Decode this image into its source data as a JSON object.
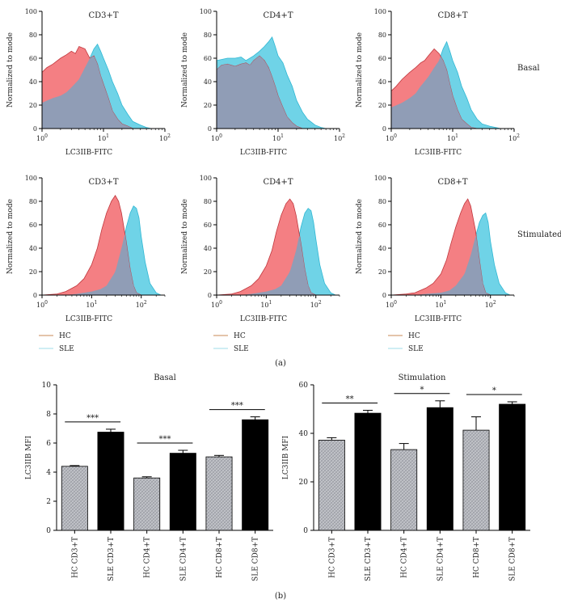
{
  "figure_labels": {
    "a": "(a)",
    "b": "(b)"
  },
  "row_labels": {
    "basal": "Basal",
    "stimulated": "Stimulated"
  },
  "legend": {
    "hc": "HC",
    "sle": "SLE"
  },
  "colors": {
    "hc_fill": "#f47f83",
    "hc_line": "#c0363c",
    "sle_fill": "#6fd3e7",
    "sle_line": "#2fb7d3",
    "overlap": "#8a9fb8",
    "bar_hc": "#bcbfc5",
    "bar_sle": "#000000"
  },
  "chart_data": [
    {
      "type": "area",
      "id": "h1",
      "title": "CD3+T",
      "xlabel": "LC3IIB-FITC",
      "ylabel": "Normalized to mode",
      "xscale": "log",
      "xlim": [
        1,
        100
      ],
      "ylim": [
        0,
        100
      ],
      "yticks": [
        "0",
        "20",
        "40",
        "60",
        "80",
        "100"
      ],
      "xticks": [
        "10^0",
        "10^1",
        "10^2"
      ],
      "series": [
        {
          "name": "HC",
          "x": [
            1,
            1.2,
            1.5,
            2,
            2.5,
            3,
            3.5,
            4,
            5,
            6,
            7,
            8,
            9,
            10,
            12,
            14,
            17,
            20,
            25,
            30
          ],
          "y": [
            48,
            52,
            55,
            60,
            63,
            66,
            64,
            70,
            68,
            60,
            62,
            55,
            45,
            38,
            26,
            15,
            8,
            4,
            2,
            0
          ]
        },
        {
          "name": "SLE",
          "x": [
            1,
            1.5,
            2,
            2.5,
            3,
            4,
            5,
            6,
            7,
            8,
            9,
            10,
            12,
            14,
            17,
            20,
            25,
            30,
            40,
            50,
            60,
            70
          ],
          "y": [
            22,
            26,
            28,
            31,
            35,
            42,
            52,
            60,
            68,
            72,
            66,
            60,
            50,
            40,
            30,
            20,
            12,
            6,
            3,
            1,
            0,
            0
          ]
        }
      ]
    },
    {
      "type": "area",
      "id": "h2",
      "title": "CD4+T",
      "xlabel": "LC3IIB-FITC",
      "ylabel": "Normalized to mode",
      "xscale": "log",
      "xlim": [
        1,
        100
      ],
      "ylim": [
        0,
        100
      ],
      "yticks": [
        "0",
        "20",
        "40",
        "60",
        "80",
        "100"
      ],
      "xticks": [
        "10^0",
        "10^1",
        "10^2"
      ],
      "series": [
        {
          "name": "HC",
          "x": [
            1,
            1.2,
            1.5,
            2,
            2.5,
            3,
            3.5,
            4,
            5,
            6,
            7,
            8,
            9,
            10,
            12,
            14,
            17,
            20,
            25
          ],
          "y": [
            50,
            54,
            55,
            53,
            55,
            56,
            54,
            58,
            62,
            58,
            52,
            44,
            36,
            28,
            18,
            10,
            5,
            2,
            0
          ]
        },
        {
          "name": "SLE",
          "x": [
            1,
            1.5,
            2,
            2.5,
            3,
            4,
            5,
            6,
            7,
            8,
            9,
            10,
            12,
            14,
            17,
            20,
            25,
            30,
            40,
            50,
            60
          ],
          "y": [
            58,
            60,
            60,
            61,
            58,
            62,
            66,
            70,
            74,
            78,
            70,
            62,
            56,
            46,
            36,
            24,
            14,
            8,
            3,
            1,
            0
          ]
        }
      ]
    },
    {
      "type": "area",
      "id": "h3",
      "title": "CD8+T",
      "xlabel": "LC3IIB-FITC",
      "ylabel": "Normalized to mode",
      "xscale": "log",
      "xlim": [
        1,
        100
      ],
      "ylim": [
        0,
        100
      ],
      "yticks": [
        "0",
        "20",
        "40",
        "60",
        "80",
        "100"
      ],
      "xticks": [
        "10^0",
        "10^1",
        "10^2"
      ],
      "series": [
        {
          "name": "HC",
          "x": [
            1,
            1.2,
            1.5,
            2,
            2.5,
            3,
            3.5,
            4,
            5,
            6,
            7,
            8,
            9,
            10,
            12,
            14,
            17,
            20,
            25
          ],
          "y": [
            32,
            36,
            42,
            48,
            52,
            56,
            58,
            62,
            68,
            64,
            58,
            50,
            38,
            28,
            16,
            8,
            4,
            1,
            0
          ]
        },
        {
          "name": "SLE",
          "x": [
            1,
            1.5,
            2,
            2.5,
            3,
            4,
            5,
            6,
            7,
            8,
            9,
            10,
            12,
            14,
            17,
            20,
            25,
            30,
            40,
            50,
            60
          ],
          "y": [
            18,
            22,
            26,
            30,
            36,
            44,
            52,
            58,
            68,
            74,
            66,
            58,
            48,
            36,
            26,
            16,
            8,
            4,
            2,
            1,
            0
          ]
        }
      ]
    },
    {
      "type": "area",
      "id": "h4",
      "title": "CD3+T",
      "xlabel": "LC3IIB-FITC",
      "ylabel": "Normalized to mode",
      "xscale": "log",
      "xlim": [
        1,
        300
      ],
      "ylim": [
        0,
        100
      ],
      "yticks": [
        "0",
        "20",
        "40",
        "60",
        "80",
        "100"
      ],
      "xticks": [
        "10^0",
        "10^1",
        "10^2"
      ],
      "series": [
        {
          "name": "HC",
          "x": [
            1,
            2,
            3,
            5,
            7,
            10,
            13,
            16,
            20,
            25,
            30,
            35,
            40,
            50,
            60,
            70,
            80,
            100
          ],
          "y": [
            0,
            1,
            3,
            8,
            14,
            26,
            40,
            56,
            70,
            80,
            85,
            80,
            70,
            45,
            22,
            8,
            2,
            0
          ]
        },
        {
          "name": "SLE",
          "x": [
            1,
            3,
            5,
            10,
            15,
            20,
            30,
            40,
            50,
            60,
            70,
            80,
            90,
            100,
            120,
            150,
            200,
            250
          ],
          "y": [
            0,
            0,
            1,
            3,
            5,
            8,
            20,
            40,
            58,
            70,
            76,
            74,
            66,
            50,
            28,
            10,
            2,
            0
          ]
        }
      ]
    },
    {
      "type": "area",
      "id": "h5",
      "title": "CD4+T",
      "xlabel": "LC3IIB-FITC",
      "ylabel": "Normalized to mode",
      "xscale": "log",
      "xlim": [
        1,
        300
      ],
      "ylim": [
        0,
        100
      ],
      "yticks": [
        "0",
        "20",
        "40",
        "60",
        "80",
        "100"
      ],
      "xticks": [
        "10^0",
        "10^1",
        "10^2"
      ],
      "series": [
        {
          "name": "HC",
          "x": [
            1,
            2,
            3,
            5,
            7,
            10,
            13,
            16,
            20,
            25,
            30,
            35,
            40,
            50,
            60,
            70,
            80,
            100
          ],
          "y": [
            0,
            1,
            3,
            8,
            14,
            25,
            38,
            54,
            68,
            78,
            82,
            78,
            68,
            44,
            22,
            8,
            2,
            0
          ]
        },
        {
          "name": "SLE",
          "x": [
            1,
            3,
            5,
            10,
            15,
            20,
            30,
            40,
            50,
            60,
            70,
            80,
            90,
            100,
            120,
            150,
            200,
            250
          ],
          "y": [
            0,
            0,
            1,
            3,
            5,
            8,
            20,
            38,
            58,
            70,
            74,
            72,
            62,
            48,
            26,
            10,
            2,
            0
          ]
        }
      ]
    },
    {
      "type": "area",
      "id": "h6",
      "title": "CD8+T",
      "xlabel": "LC3IIB-FITC",
      "ylabel": "Normalized to mode",
      "xscale": "log",
      "xlim": [
        1,
        300
      ],
      "ylim": [
        0,
        100
      ],
      "yticks": [
        "0",
        "20",
        "40",
        "60",
        "80",
        "100"
      ],
      "xticks": [
        "10^0",
        "10^1",
        "10^2"
      ],
      "series": [
        {
          "name": "HC",
          "x": [
            1,
            2,
            3,
            5,
            7,
            10,
            13,
            16,
            20,
            25,
            30,
            35,
            40,
            50,
            60,
            70,
            80,
            100
          ],
          "y": [
            0,
            1,
            2,
            6,
            10,
            18,
            30,
            44,
            58,
            70,
            78,
            82,
            76,
            55,
            30,
            10,
            2,
            0
          ]
        },
        {
          "name": "SLE",
          "x": [
            1,
            3,
            5,
            10,
            15,
            20,
            30,
            40,
            50,
            60,
            70,
            80,
            90,
            100,
            120,
            150,
            200,
            250
          ],
          "y": [
            0,
            0,
            1,
            2,
            4,
            8,
            18,
            34,
            50,
            62,
            68,
            70,
            62,
            46,
            26,
            10,
            2,
            0
          ]
        }
      ]
    },
    {
      "type": "bar",
      "id": "b1",
      "title": "Basal",
      "ylabel": "LC3IIB MFI",
      "ylim": [
        0,
        10
      ],
      "yticks": [
        0,
        2,
        4,
        6,
        8,
        10
      ],
      "categories": [
        "HC CD3+T",
        "SLE CD3+T",
        "HC CD4+T",
        "SLE CD4+T",
        "HC CD8+T",
        "SLE CD8+T"
      ],
      "values": [
        4.4,
        6.75,
        3.6,
        5.3,
        5.05,
        7.6
      ],
      "errors": [
        0.05,
        0.2,
        0.08,
        0.2,
        0.1,
        0.2
      ],
      "annotations": [
        {
          "pair": [
            0,
            1
          ],
          "text": "***"
        },
        {
          "pair": [
            2,
            3
          ],
          "text": "***"
        },
        {
          "pair": [
            4,
            5
          ],
          "text": "***"
        }
      ]
    },
    {
      "type": "bar",
      "id": "b2",
      "title": "Stimulation",
      "ylabel": "LC3IIB MFI",
      "ylim": [
        0,
        60
      ],
      "yticks": [
        0,
        20,
        40,
        60
      ],
      "categories": [
        "HC CD3+T",
        "SLE CD3+T",
        "HC CD4+T",
        "SLE CD4+T",
        "HC CD8+T",
        "SLE CD8+T"
      ],
      "values": [
        37.2,
        48.3,
        33.3,
        50.6,
        41.3,
        52.0
      ],
      "errors": [
        1.0,
        1.2,
        2.5,
        2.8,
        5.5,
        1.0
      ],
      "annotations": [
        {
          "pair": [
            0,
            1
          ],
          "text": "**"
        },
        {
          "pair": [
            2,
            3
          ],
          "text": "*"
        },
        {
          "pair": [
            4,
            5
          ],
          "text": "*"
        }
      ]
    }
  ]
}
